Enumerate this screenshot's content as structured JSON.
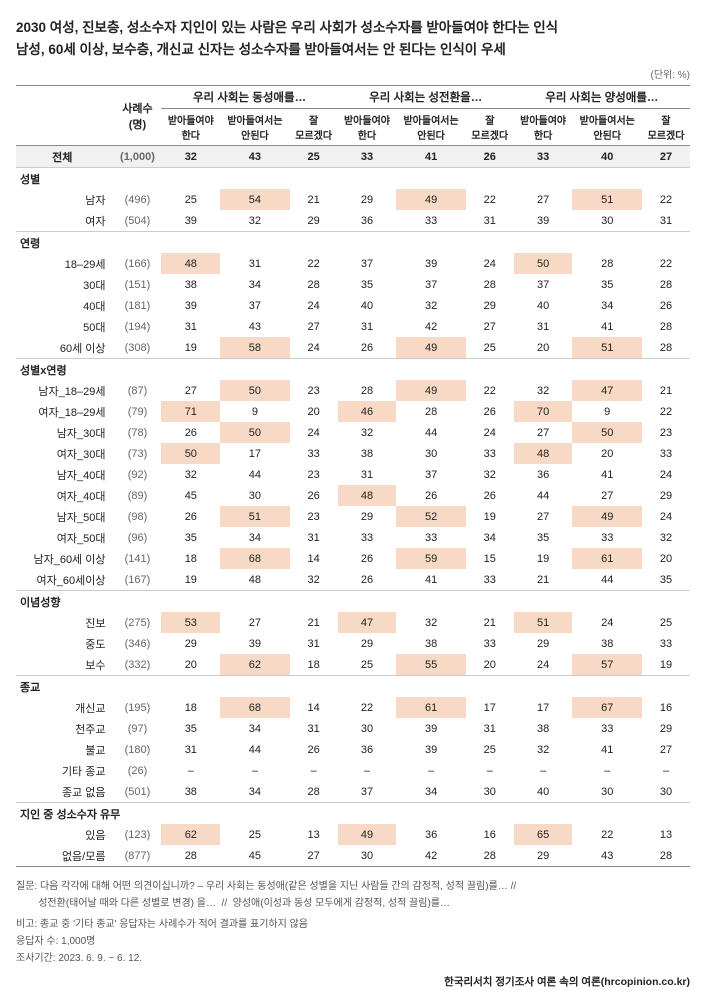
{
  "title1": "2030 여성, 진보층, 성소수자 지인이 있는 사람은 우리 사회가 성소수자를 받아들여야 한다는 인식",
  "title2": "남성, 60세 이상, 보수층, 개신교 신자는 성소수자를 받아들여서는 안 된다는 인식이 우세",
  "unit": "(단위: %)",
  "head": {
    "n": "사례수\n(명)",
    "g1": "우리 사회는 동성애를…",
    "g2": "우리 사회는 성전환을…",
    "g3": "우리 사회는 양성애를…",
    "sub": [
      "받아들여야\n한다",
      "받아들여서는\n안된다",
      "잘\n모르겠다"
    ]
  },
  "hl_color": "#f8d9c6",
  "total_bg": "#f1f1f1",
  "total": {
    "label": "전체",
    "n": "(1,000)",
    "v": [
      32,
      43,
      25,
      33,
      41,
      26,
      33,
      40,
      27
    ]
  },
  "sections": [
    {
      "label": "성별",
      "rows": [
        {
          "label": "남자",
          "n": "(496)",
          "v": [
            25,
            54,
            21,
            29,
            49,
            22,
            27,
            51,
            22
          ],
          "hl": [
            1,
            4,
            7
          ]
        },
        {
          "label": "여자",
          "n": "(504)",
          "v": [
            39,
            32,
            29,
            36,
            33,
            31,
            39,
            30,
            31
          ],
          "hl": []
        }
      ]
    },
    {
      "label": "연령",
      "rows": [
        {
          "label": "18–29세",
          "n": "(166)",
          "v": [
            48,
            31,
            22,
            37,
            39,
            24,
            50,
            28,
            22
          ],
          "hl": [
            0,
            6
          ]
        },
        {
          "label": "30대",
          "n": "(151)",
          "v": [
            38,
            34,
            28,
            35,
            37,
            28,
            37,
            35,
            28
          ],
          "hl": []
        },
        {
          "label": "40대",
          "n": "(181)",
          "v": [
            39,
            37,
            24,
            40,
            32,
            29,
            40,
            34,
            26
          ],
          "hl": []
        },
        {
          "label": "50대",
          "n": "(194)",
          "v": [
            31,
            43,
            27,
            31,
            42,
            27,
            31,
            41,
            28
          ],
          "hl": []
        },
        {
          "label": "60세 이상",
          "n": "(308)",
          "v": [
            19,
            58,
            24,
            26,
            49,
            25,
            20,
            51,
            28
          ],
          "hl": [
            1,
            4,
            7
          ]
        }
      ]
    },
    {
      "label": "성별x연령",
      "rows": [
        {
          "label": "남자_18–29세",
          "n": "(87)",
          "v": [
            27,
            50,
            23,
            28,
            49,
            22,
            32,
            47,
            21
          ],
          "hl": [
            1,
            4,
            7
          ]
        },
        {
          "label": "여자_18–29세",
          "n": "(79)",
          "v": [
            71,
            9,
            20,
            46,
            28,
            26,
            70,
            9,
            22
          ],
          "hl": [
            0,
            3,
            6
          ]
        },
        {
          "label": "남자_30대",
          "n": "(78)",
          "v": [
            26,
            50,
            24,
            32,
            44,
            24,
            27,
            50,
            23
          ],
          "hl": [
            1,
            7
          ]
        },
        {
          "label": "여자_30대",
          "n": "(73)",
          "v": [
            50,
            17,
            33,
            38,
            30,
            33,
            48,
            20,
            33
          ],
          "hl": [
            0,
            6
          ]
        },
        {
          "label": "남자_40대",
          "n": "(92)",
          "v": [
            32,
            44,
            23,
            31,
            37,
            32,
            36,
            41,
            24
          ],
          "hl": []
        },
        {
          "label": "여자_40대",
          "n": "(89)",
          "v": [
            45,
            30,
            26,
            48,
            26,
            26,
            44,
            27,
            29
          ],
          "hl": [
            3
          ]
        },
        {
          "label": "남자_50대",
          "n": "(98)",
          "v": [
            26,
            51,
            23,
            29,
            52,
            19,
            27,
            49,
            24
          ],
          "hl": [
            1,
            4,
            7
          ]
        },
        {
          "label": "여자_50대",
          "n": "(96)",
          "v": [
            35,
            34,
            31,
            33,
            33,
            34,
            35,
            33,
            32
          ],
          "hl": []
        },
        {
          "label": "남자_60세 이상",
          "n": "(141)",
          "v": [
            18,
            68,
            14,
            26,
            59,
            15,
            19,
            61,
            20
          ],
          "hl": [
            1,
            4,
            7
          ]
        },
        {
          "label": "여자_60세이상",
          "n": "(167)",
          "v": [
            19,
            48,
            32,
            26,
            41,
            33,
            21,
            44,
            35
          ],
          "hl": []
        }
      ]
    },
    {
      "label": "이념성향",
      "rows": [
        {
          "label": "진보",
          "n": "(275)",
          "v": [
            53,
            27,
            21,
            47,
            32,
            21,
            51,
            24,
            25
          ],
          "hl": [
            0,
            3,
            6
          ]
        },
        {
          "label": "중도",
          "n": "(346)",
          "v": [
            29,
            39,
            31,
            29,
            38,
            33,
            29,
            38,
            33
          ],
          "hl": []
        },
        {
          "label": "보수",
          "n": "(332)",
          "v": [
            20,
            62,
            18,
            25,
            55,
            20,
            24,
            57,
            19
          ],
          "hl": [
            1,
            4,
            7
          ]
        }
      ]
    },
    {
      "label": "종교",
      "rows": [
        {
          "label": "개신교",
          "n": "(195)",
          "v": [
            18,
            68,
            14,
            22,
            61,
            17,
            17,
            67,
            16
          ],
          "hl": [
            1,
            4,
            7
          ]
        },
        {
          "label": "천주교",
          "n": "(97)",
          "v": [
            35,
            34,
            31,
            30,
            39,
            31,
            38,
            33,
            29
          ],
          "hl": []
        },
        {
          "label": "불교",
          "n": "(180)",
          "v": [
            31,
            44,
            26,
            36,
            39,
            25,
            32,
            41,
            27
          ],
          "hl": []
        },
        {
          "label": "기타 종교",
          "n": "(26)",
          "v": [
            "–",
            "–",
            "–",
            "–",
            "–",
            "–",
            "–",
            "–",
            "–"
          ],
          "hl": []
        },
        {
          "label": "종교 없음",
          "n": "(501)",
          "v": [
            38,
            34,
            28,
            37,
            34,
            30,
            40,
            30,
            30
          ],
          "hl": []
        }
      ]
    },
    {
      "label": "지인 중 성소수자 유무",
      "rows": [
        {
          "label": "있음",
          "n": "(123)",
          "v": [
            62,
            25,
            13,
            49,
            36,
            16,
            65,
            22,
            13
          ],
          "hl": [
            0,
            3,
            6
          ]
        },
        {
          "label": "없음/모름",
          "n": "(877)",
          "v": [
            28,
            45,
            27,
            30,
            42,
            28,
            29,
            43,
            28
          ],
          "hl": []
        }
      ]
    }
  ],
  "foot": {
    "q1": "질문: 다음 각각에 대해 어떤 의견이십니까? –  우리 사회는 동성애(같은 성별을 지닌 사람들 간의 감정적, 성적 끌림)를… //",
    "q2": "        성전환(태어날 때와 다른 성별로 변경) 을…  //  양성애(이성과 동성 모두에게 감정적, 성적 끌림)를…",
    "note": "비고: 종교 중 '기타 종교' 응답자는 사례수가 적어 결과를 표기하지 않음",
    "resp": "응답자 수: 1,000명",
    "period": "조사기간: 2023. 6. 9. ~ 6. 12."
  },
  "source": "한국리서치 정기조사 여론 속의 여론(hrcopinion.co.kr)"
}
